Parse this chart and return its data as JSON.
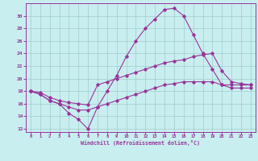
{
  "xlabel": "Windchill (Refroidissement éolien,°C)",
  "bg_color": "#c8eef0",
  "line_color": "#993399",
  "grid_color": "#a0cccc",
  "x_ticks": [
    0,
    1,
    2,
    3,
    4,
    5,
    6,
    7,
    8,
    9,
    10,
    11,
    12,
    13,
    14,
    15,
    16,
    17,
    18,
    19,
    20,
    21,
    22,
    23
  ],
  "y_ticks": [
    12,
    14,
    16,
    18,
    20,
    22,
    24,
    26,
    28,
    30
  ],
  "xlim": [
    -0.5,
    23.5
  ],
  "ylim": [
    11.5,
    32.0
  ],
  "line1_x": [
    0,
    1,
    2,
    3,
    4,
    5,
    6,
    7,
    8,
    9,
    10,
    11,
    12,
    13,
    14,
    15,
    16,
    17,
    18,
    19,
    20,
    21,
    22,
    23
  ],
  "line1_y": [
    18.0,
    17.5,
    16.5,
    16.0,
    14.5,
    13.5,
    12.0,
    15.5,
    18.0,
    20.5,
    23.5,
    26.0,
    28.0,
    29.5,
    31.0,
    31.2,
    30.0,
    27.0,
    24.0,
    21.5,
    19.0,
    19.0,
    19.0,
    19.0
  ],
  "line2_x": [
    0,
    1,
    2,
    3,
    4,
    5,
    6,
    7,
    8,
    9,
    10,
    11,
    12,
    13,
    14,
    15,
    16,
    17,
    18,
    19,
    20,
    21,
    22,
    23
  ],
  "line2_y": [
    18.0,
    17.8,
    17.0,
    16.5,
    16.2,
    16.0,
    15.8,
    19.0,
    19.5,
    20.0,
    20.5,
    21.0,
    21.5,
    22.0,
    22.5,
    22.8,
    23.0,
    23.5,
    23.8,
    24.0,
    21.2,
    19.5,
    19.2,
    19.0
  ],
  "line3_x": [
    0,
    1,
    2,
    3,
    4,
    5,
    6,
    7,
    8,
    9,
    10,
    11,
    12,
    13,
    14,
    15,
    16,
    17,
    18,
    19,
    20,
    21,
    22,
    23
  ],
  "line3_y": [
    18.0,
    17.5,
    16.5,
    16.0,
    15.5,
    15.0,
    15.0,
    15.5,
    16.0,
    16.5,
    17.0,
    17.5,
    18.0,
    18.5,
    19.0,
    19.2,
    19.5,
    19.5,
    19.5,
    19.5,
    19.0,
    18.5,
    18.5,
    18.5
  ]
}
